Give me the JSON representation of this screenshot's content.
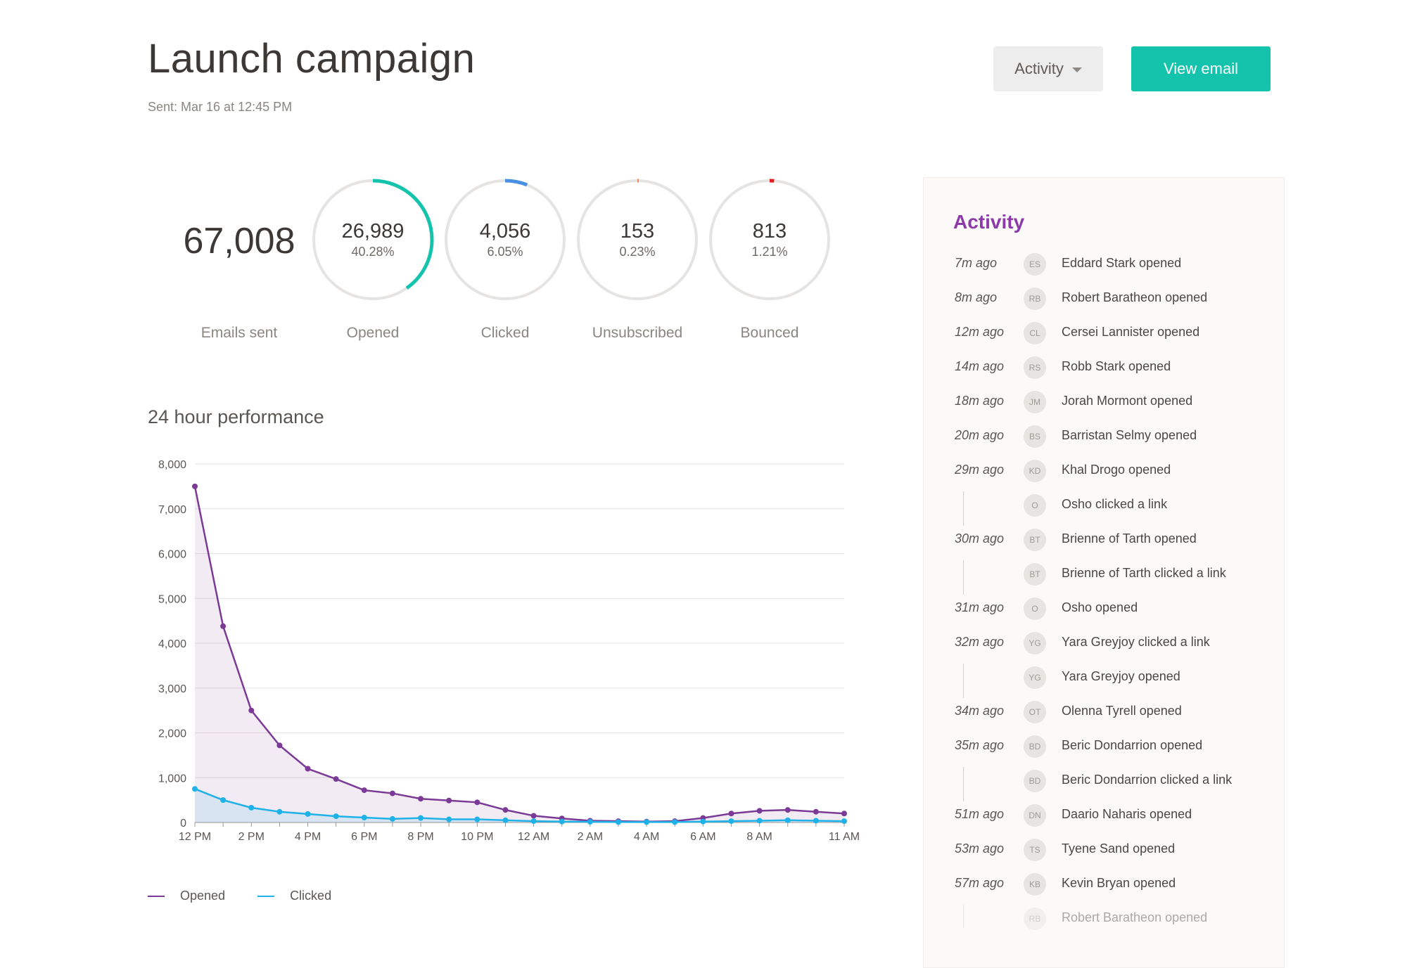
{
  "header": {
    "title": "Launch campaign",
    "sent": "Sent: Mar 16 at 12:45 PM",
    "activity_dropdown_label": "Activity",
    "view_email_label": "View email"
  },
  "colors": {
    "accent_teal": "#13c3ac",
    "opened_series": "#7b3a96",
    "clicked_series": "#1fb2e8",
    "clicked_ring": "#4a90e2",
    "unsubscribed_ring": "#f08a5d",
    "bounced_ring": "#e02020",
    "ring_track": "#e6e4e2",
    "activity_title": "#8c3aa8"
  },
  "stats": {
    "total": {
      "value": "67,008",
      "label": "Emails sent"
    },
    "rings": [
      {
        "key": "opened",
        "value": "26,989",
        "percent": "40.28%",
        "fraction": 0.4028,
        "label": "Opened",
        "color": "#13c3ac"
      },
      {
        "key": "clicked",
        "value": "4,056",
        "percent": "6.05%",
        "fraction": 0.0605,
        "label": "Clicked",
        "color": "#4a90e2"
      },
      {
        "key": "unsubscribed",
        "value": "153",
        "percent": "0.23%",
        "fraction": 0.0023,
        "label": "Unsubscribed",
        "color": "#f08a5d"
      },
      {
        "key": "bounced",
        "value": "813",
        "percent": "1.21%",
        "fraction": 0.0121,
        "label": "Bounced",
        "color": "#e02020"
      }
    ]
  },
  "chart": {
    "heading": "24 hour performance",
    "legend": {
      "opened": "Opened",
      "clicked": "Clicked"
    }
  },
  "chart_data": {
    "type": "line",
    "title": "24 hour performance",
    "xlabel": "",
    "ylabel": "",
    "x": [
      "12 PM",
      "1 PM",
      "2 PM",
      "3 PM",
      "4 PM",
      "5 PM",
      "6 PM",
      "7 PM",
      "8 PM",
      "9 PM",
      "10 PM",
      "11 PM",
      "12 AM",
      "1 AM",
      "2 AM",
      "3 AM",
      "4 AM",
      "5 AM",
      "6 AM",
      "7 AM",
      "8 AM",
      "9 AM",
      "10 AM",
      "11 AM"
    ],
    "x_tick_labels": [
      "12 PM",
      "2 PM",
      "4 PM",
      "6 PM",
      "8 PM",
      "10 PM",
      "12 AM",
      "2 AM",
      "4 AM",
      "6 AM",
      "8 AM",
      "11 AM"
    ],
    "y_tick_labels": [
      "0",
      "1,000",
      "2,000",
      "3,000",
      "4,000",
      "5,000",
      "6,000",
      "7,000",
      "8,000"
    ],
    "ylim": [
      0,
      8000
    ],
    "grid": true,
    "legend_position": "bottom-left",
    "series": [
      {
        "name": "Opened",
        "color": "#7b3a96",
        "fill": true,
        "values": [
          7500,
          4380,
          2500,
          1720,
          1200,
          970,
          720,
          650,
          530,
          490,
          450,
          280,
          150,
          90,
          40,
          30,
          20,
          30,
          100,
          200,
          260,
          280,
          240,
          200
        ]
      },
      {
        "name": "Clicked",
        "color": "#1fb2e8",
        "fill": true,
        "values": [
          750,
          500,
          330,
          240,
          190,
          140,
          110,
          80,
          100,
          70,
          70,
          50,
          30,
          20,
          15,
          10,
          10,
          10,
          20,
          30,
          40,
          50,
          40,
          30
        ]
      }
    ]
  },
  "activity": {
    "title": "Activity",
    "items": [
      {
        "time": "7m ago",
        "initials": "ES",
        "text": "Eddard Stark opened"
      },
      {
        "time": "8m ago",
        "initials": "RB",
        "text": "Robert Baratheon opened"
      },
      {
        "time": "12m ago",
        "initials": "CL",
        "text": "Cersei Lannister opened"
      },
      {
        "time": "14m ago",
        "initials": "RS",
        "text": "Robb Stark opened"
      },
      {
        "time": "18m ago",
        "initials": "JM",
        "text": "Jorah Mormont opened"
      },
      {
        "time": "20m ago",
        "initials": "BS",
        "text": "Barristan Selmy opened"
      },
      {
        "time": "29m ago",
        "initials": "KD",
        "text": "Khal Drogo opened"
      },
      {
        "time": "",
        "initials": "O",
        "text": "Osho clicked a link"
      },
      {
        "time": "30m ago",
        "initials": "BT",
        "text": "Brienne of Tarth opened"
      },
      {
        "time": "",
        "initials": "BT",
        "text": "Brienne of Tarth clicked a link"
      },
      {
        "time": "31m ago",
        "initials": "O",
        "text": "Osho opened"
      },
      {
        "time": "32m ago",
        "initials": "YG",
        "text": "Yara Greyjoy clicked a link"
      },
      {
        "time": "",
        "initials": "YG",
        "text": "Yara Greyjoy opened"
      },
      {
        "time": "34m ago",
        "initials": "OT",
        "text": "Olenna Tyrell opened"
      },
      {
        "time": "35m ago",
        "initials": "BD",
        "text": "Beric Dondarrion opened"
      },
      {
        "time": "",
        "initials": "BD",
        "text": "Beric Dondarrion clicked a link"
      },
      {
        "time": "51m ago",
        "initials": "DN",
        "text": "Daario Naharis opened"
      },
      {
        "time": "53m ago",
        "initials": "TS",
        "text": "Tyene Sand opened"
      },
      {
        "time": "57m ago",
        "initials": "KB",
        "text": "Kevin Bryan opened"
      },
      {
        "time": "",
        "initials": "RB",
        "text": "Robert Baratheon opened",
        "faded": true
      }
    ]
  }
}
